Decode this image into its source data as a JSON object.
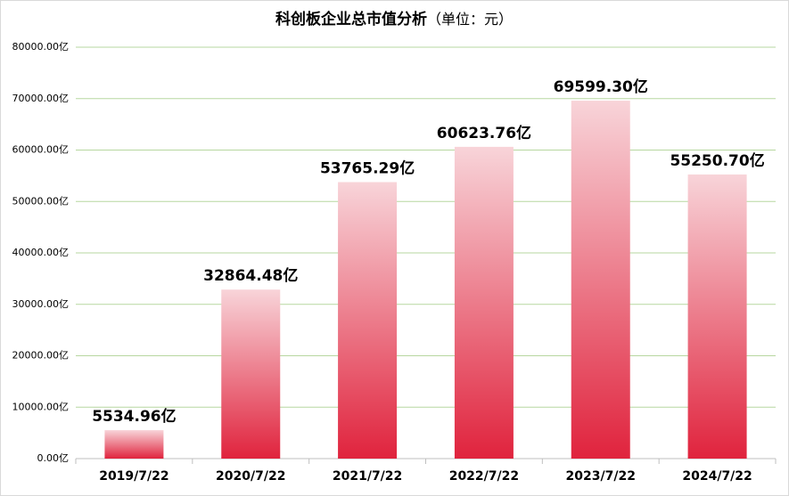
{
  "chart_data": {
    "type": "bar",
    "title": "科创板企业总市值分析",
    "subtitle": "（单位：元）",
    "categories": [
      "2019/7/22",
      "2020/7/22",
      "2021/7/22",
      "2022/7/22",
      "2023/7/22",
      "2024/7/22"
    ],
    "values": [
      5534.96,
      32864.48,
      53765.29,
      60623.76,
      69599.3,
      55250.7
    ],
    "value_labels": [
      "5534.96亿",
      "32864.48亿",
      "53765.29亿",
      "60623.76亿",
      "69599.30亿",
      "55250.70亿"
    ],
    "color": "#e0233d",
    "gradient_top_color": "#f8d4d9",
    "ylim": [
      0,
      80000
    ],
    "yticks": [
      {
        "value": 0,
        "label": "0.00亿"
      },
      {
        "value": 10000,
        "label": "10000.00亿"
      },
      {
        "value": 20000,
        "label": "20000.00亿"
      },
      {
        "value": 30000,
        "label": "30000.00亿"
      },
      {
        "value": 40000,
        "label": "40000.00亿"
      },
      {
        "value": 50000,
        "label": "50000.00亿"
      },
      {
        "value": 60000,
        "label": "60000.00亿"
      },
      {
        "value": 70000,
        "label": "70000.00亿"
      },
      {
        "value": 80000,
        "label": "80000.00亿"
      }
    ],
    "grid": true,
    "grid_color": "#b7d7a0"
  }
}
